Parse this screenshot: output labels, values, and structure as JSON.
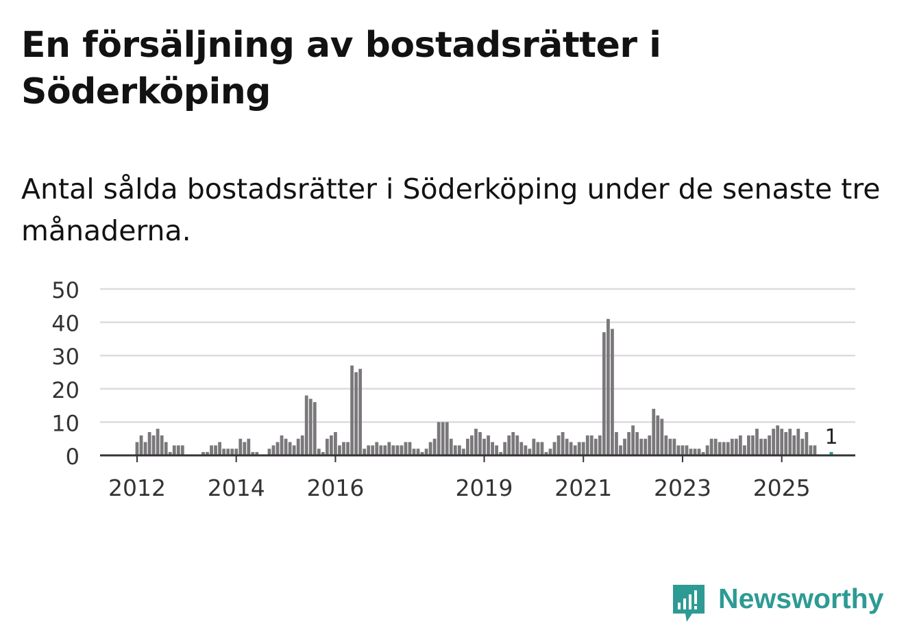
{
  "title": "En försäljning av bostadsrätter i Söderköping",
  "subtitle": "Antal sålda bostadsrätter i Söderköping under de senaste tre månaderna.",
  "brand": {
    "name": "Newsworthy",
    "color": "#2e9a94",
    "icon": "newsworthy-logo-icon"
  },
  "colors": {
    "bar": "#7b787c",
    "highlight": "#2a9d9a",
    "grid": "#dcdcdc",
    "axis": "#333333"
  },
  "chart_data": {
    "type": "bar",
    "title": "En försäljning av bostadsrätter i Söderköping",
    "xlabel": "",
    "ylabel": "",
    "ylim": [
      0,
      50
    ],
    "yticks": [
      0,
      10,
      20,
      30,
      40,
      50
    ],
    "xticks": [
      {
        "label": "2012",
        "index": 12
      },
      {
        "label": "2014",
        "index": 36
      },
      {
        "label": "2016",
        "index": 60
      },
      {
        "label": "2019",
        "index": 96
      },
      {
        "label": "2021",
        "index": 120
      },
      {
        "label": "2023",
        "index": 144
      },
      {
        "label": "2025",
        "index": 168
      }
    ],
    "start_month": "2011-01",
    "values": [
      0,
      0,
      0,
      0,
      0,
      0,
      0,
      0,
      0,
      0,
      0,
      0,
      4,
      6,
      4,
      7,
      6,
      8,
      6,
      4,
      1,
      3,
      3,
      3,
      0,
      0,
      0,
      0,
      1,
      1,
      3,
      3,
      4,
      2,
      2,
      2,
      2,
      5,
      4,
      5,
      1,
      1,
      0,
      0,
      2,
      3,
      4,
      6,
      5,
      4,
      3,
      5,
      6,
      18,
      17,
      16,
      2,
      1,
      5,
      6,
      7,
      3,
      4,
      4,
      27,
      25,
      26,
      2,
      3,
      3,
      4,
      3,
      3,
      4,
      3,
      3,
      3,
      4,
      4,
      2,
      2,
      1,
      2,
      4,
      5,
      10,
      10,
      10,
      5,
      3,
      3,
      2,
      5,
      6,
      8,
      7,
      5,
      6,
      4,
      3,
      1,
      4,
      6,
      7,
      6,
      4,
      3,
      2,
      5,
      4,
      4,
      1,
      2,
      4,
      6,
      7,
      5,
      4,
      3,
      4,
      4,
      6,
      6,
      5,
      6,
      37,
      41,
      38,
      7,
      3,
      5,
      7,
      9,
      7,
      5,
      5,
      6,
      14,
      12,
      11,
      6,
      5,
      5,
      3,
      3,
      3,
      2,
      2,
      2,
      1,
      3,
      5,
      5,
      4,
      4,
      4,
      5,
      5,
      6,
      3,
      6,
      6,
      8,
      5,
      5,
      6,
      8,
      9,
      8,
      7,
      8,
      6,
      8,
      5,
      7,
      3,
      3,
      0,
      0,
      0,
      1,
      0,
      0,
      0,
      0,
      0,
      0,
      0,
      0,
      0
    ],
    "highlight": {
      "index": 180,
      "value": 1,
      "label": "1"
    }
  }
}
